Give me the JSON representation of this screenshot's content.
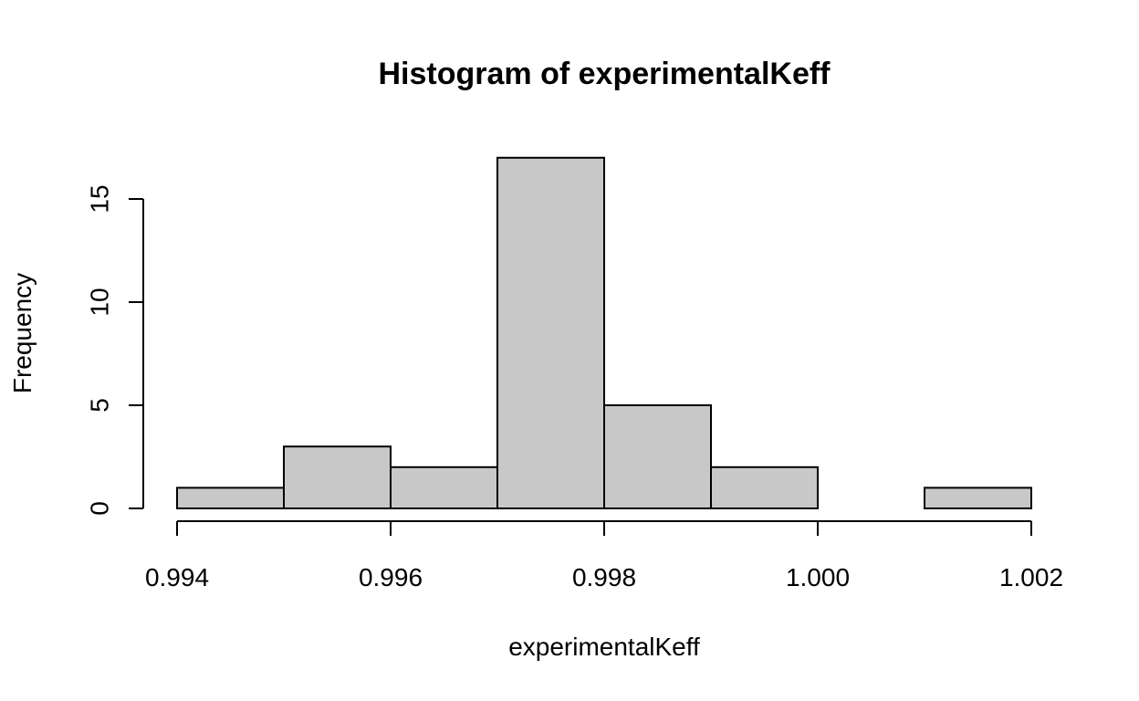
{
  "chart_data": {
    "type": "bar",
    "title": "Histogram of experimentalKeff",
    "xlabel": "experimentalKeff",
    "ylabel": "Frequency",
    "bin_edges": [
      0.994,
      0.995,
      0.996,
      0.997,
      0.998,
      0.999,
      1.0,
      1.001,
      1.002
    ],
    "values": [
      1,
      3,
      2,
      17,
      5,
      2,
      0,
      1
    ],
    "xlim": [
      0.994,
      1.002
    ],
    "ylim": [
      0,
      17
    ],
    "x_ticks": [
      0.994,
      0.996,
      0.998,
      1.0,
      1.002
    ],
    "x_tick_labels": [
      "0.994",
      "0.996",
      "0.998",
      "1.000",
      "1.002"
    ],
    "y_ticks": [
      0,
      5,
      10,
      15
    ],
    "y_tick_labels": [
      "0",
      "5",
      "10",
      "15"
    ],
    "bar_color": "#c8c8c8",
    "grid": false,
    "legend": "none"
  }
}
